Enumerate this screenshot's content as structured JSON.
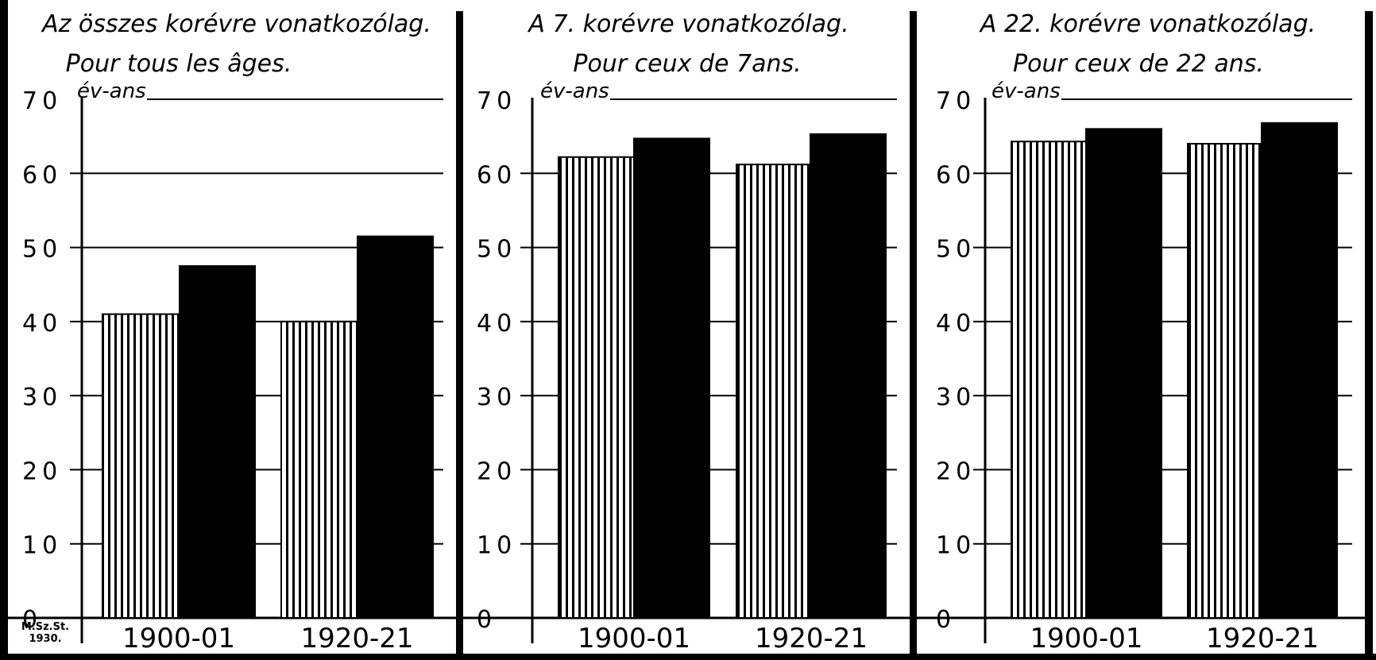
{
  "chart_data": [
    {
      "type": "bar",
      "title": "Az összes korévre vonatkozólag.",
      "subtitle": "Pour tous les âges.",
      "ylabel": "év-ans",
      "ylim": [
        0,
        70
      ],
      "yticks": [
        "0",
        "10",
        "20",
        "30",
        "40",
        "50",
        "60",
        "70"
      ],
      "categories": [
        "1900-01",
        "1920-21"
      ],
      "series": [
        {
          "values": [
            41,
            40
          ],
          "fill": "hatched"
        },
        {
          "values": [
            47.5,
            51.5
          ],
          "fill": "solid"
        }
      ],
      "grid": true
    },
    {
      "type": "bar",
      "title": "A 7. korévre vonatkozólag.",
      "subtitle": "Pour ceux de 7ans.",
      "ylabel": "év-ans",
      "ylim": [
        0,
        70
      ],
      "yticks": [
        "0",
        "10",
        "20",
        "30",
        "40",
        "50",
        "60",
        "70"
      ],
      "categories": [
        "1900-01",
        "1920-21"
      ],
      "series": [
        {
          "values": [
            62.2,
            61.2
          ],
          "fill": "hatched"
        },
        {
          "values": [
            64.7,
            65.3
          ],
          "fill": "solid"
        }
      ],
      "grid": true
    },
    {
      "type": "bar",
      "title": "A 22. korévre vonatkozólag.",
      "subtitle": "Pour ceux de 22 ans.",
      "ylabel": "év-ans",
      "ylim": [
        0,
        70
      ],
      "yticks": [
        "0",
        "10",
        "20",
        "30",
        "40",
        "50",
        "60",
        "70"
      ],
      "categories": [
        "1900-01",
        "1920-21"
      ],
      "series": [
        {
          "values": [
            64.3,
            64
          ],
          "fill": "hatched"
        },
        {
          "values": [
            66,
            66.8
          ],
          "fill": "solid"
        }
      ],
      "grid": true
    }
  ],
  "credit": {
    "line1": "M.Sz.St.",
    "line2": "1930."
  },
  "colors": {
    "ink": "#000000",
    "paper": "#ffffff"
  }
}
